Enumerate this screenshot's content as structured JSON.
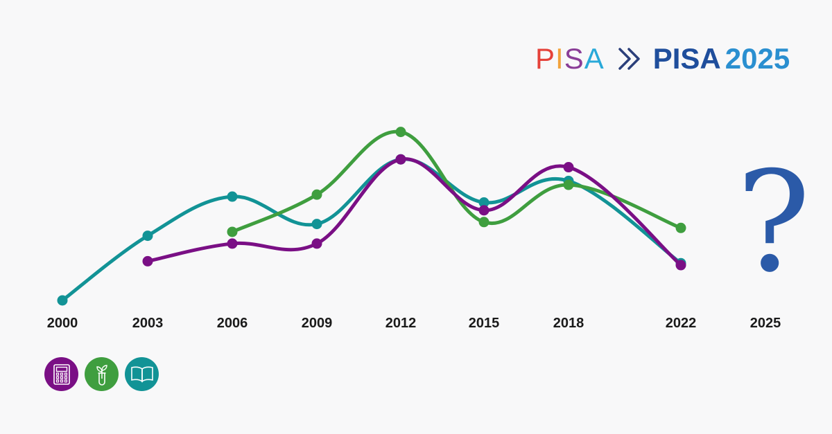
{
  "logo": {
    "old_text": "PISA",
    "old_colors": [
      "#e5423a",
      "#f2a23c",
      "#8a3d97",
      "#29a9d9"
    ],
    "new_label": "PISA",
    "new_year": "2025",
    "new_color": "#1f4e9c",
    "new_year_color": "#2a8fd0",
    "arrow_color": "#2b3f7a"
  },
  "future_marker": {
    "text": "?",
    "color": "#2b5aa8"
  },
  "domains": [
    {
      "name": "mathematics",
      "icon": "calculator-icon",
      "color": "#7a0f85"
    },
    {
      "name": "science",
      "icon": "plant-test-tube-icon",
      "color": "#3f9e3f"
    },
    {
      "name": "reading",
      "icon": "open-book-icon",
      "color": "#129396"
    }
  ],
  "chart_data": {
    "type": "line",
    "title": "",
    "xlabel": "",
    "ylabel": "",
    "categories": [
      "2000",
      "2003",
      "2006",
      "2009",
      "2012",
      "2015",
      "2018",
      "2022",
      "2025"
    ],
    "ylim": [
      0,
      100
    ],
    "grid": false,
    "legend": "none",
    "series": [
      {
        "color": "#129396",
        "values": [
          0,
          33,
          53,
          39,
          72,
          50,
          61,
          19,
          null
        ]
      },
      {
        "color": "#3f9e3f",
        "values": [
          null,
          null,
          35,
          54,
          86,
          40,
          59,
          37,
          null
        ]
      },
      {
        "color": "#7a0f85",
        "values": [
          null,
          20,
          29,
          29,
          72,
          46,
          68,
          18,
          null
        ]
      }
    ]
  }
}
